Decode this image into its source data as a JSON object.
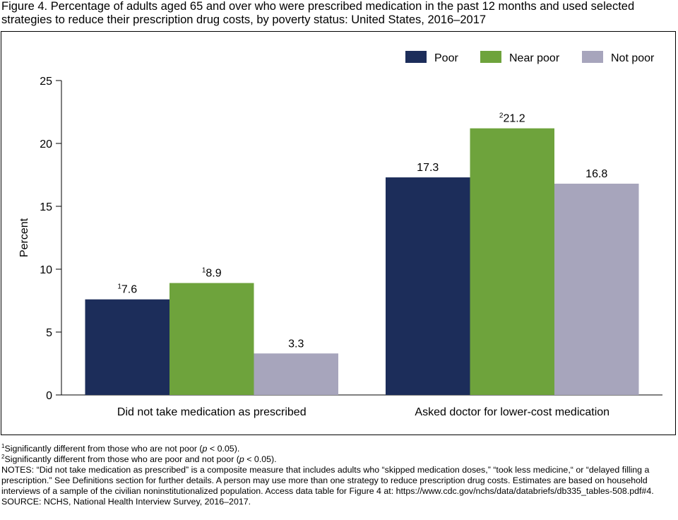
{
  "title": "Figure 4. Percentage of adults aged 65 and over who were prescribed medication in the past 12 months and used selected strategies to reduce their prescription drug costs, by poverty status: United States, 2016–2017",
  "chart_data": {
    "type": "bar",
    "categories": [
      "Did not take medication as prescribed",
      "Asked doctor for lower-cost medication"
    ],
    "series": [
      {
        "name": "Poor",
        "color": "#1c2d5a",
        "values": [
          7.6,
          17.3
        ],
        "value_labels": [
          "7.6",
          "17.3"
        ],
        "footnote_marks": [
          "1",
          ""
        ]
      },
      {
        "name": "Near poor",
        "color": "#6ea33c",
        "values": [
          8.9,
          21.2
        ],
        "value_labels": [
          "8.9",
          "21.2"
        ],
        "footnote_marks": [
          "1",
          "2"
        ]
      },
      {
        "name": "Not poor",
        "color": "#a7a5bc",
        "values": [
          3.3,
          16.8
        ],
        "value_labels": [
          "3.3",
          "16.8"
        ],
        "footnote_marks": [
          "",
          ""
        ]
      }
    ],
    "ylabel": "Percent",
    "ylim": [
      0,
      25
    ],
    "yticks": [
      "0",
      "5",
      "10",
      "15",
      "20",
      "25"
    ],
    "grid": false,
    "legend_position": "top-right"
  },
  "notes": {
    "fn1_mark": "1",
    "fn1_a": "Significantly different from those who are not poor (",
    "fn1_p": "p",
    "fn1_b": " < 0.05).",
    "fn2_mark": "2",
    "fn2_a": "Significantly different from those who are poor and not poor (",
    "fn2_p": "p",
    "fn2_b": " < 0.05).",
    "notes_text": "NOTES: “Did not take medication as prescribed” is a composite measure that includes adults who “skipped medication doses,” “took less medicine,“ or “delayed filling a prescription.” See Definitions section for further details. A person may use more than one strategy to reduce prescription drug costs. Estimates are based on household interviews of a sample of the civilian noninstitutionalized population. Access data table for Figure 4 at: https://www.cdc.gov/nchs/data/databriefs/db335_tables-508.pdf#4.",
    "source_text": "SOURCE: NCHS, National Health Interview Survey, 2016–2017."
  }
}
